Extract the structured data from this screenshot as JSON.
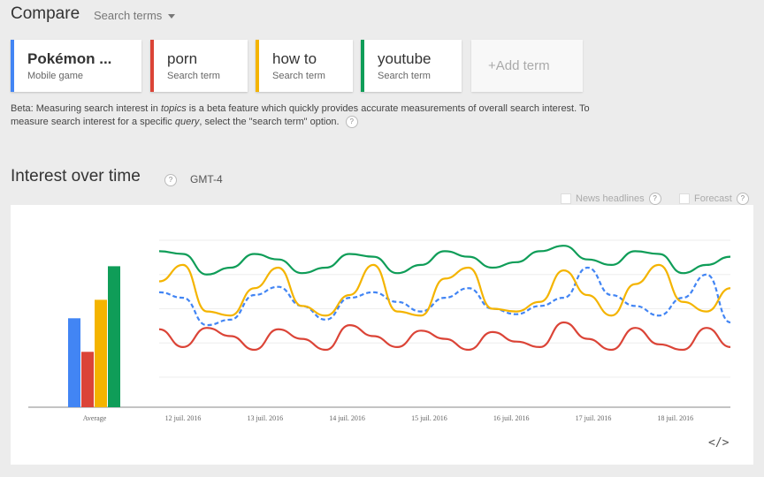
{
  "header": {
    "compare_label": "Compare",
    "search_terms_label": "Search terms"
  },
  "terms": [
    {
      "label": "Pokémon ...",
      "sub": "Mobile game",
      "color": "#4285f4"
    },
    {
      "label": "porn",
      "sub": "Search term",
      "color": "#db4437"
    },
    {
      "label": "how to",
      "sub": "Search term",
      "color": "#f4b400"
    },
    {
      "label": "youtube",
      "sub": "Search term",
      "color": "#0f9d58"
    }
  ],
  "add_term_label": "+Add term",
  "beta_note": {
    "part1": "Beta: Measuring search interest in ",
    "topics": "topics",
    "part2": " is a beta feature which quickly provides accurate measurements of overall search interest. To measure search interest for a specific ",
    "query": "query",
    "part3": ", select the \"search term\" option."
  },
  "help_glyph": "?",
  "section": {
    "title": "Interest over time",
    "timezone": "GMT-4",
    "news_headlines": "News headlines",
    "forecast": "Forecast"
  },
  "embed_glyph": "</>",
  "chart_data": {
    "type": "line",
    "average_label": "Average",
    "averages": [
      {
        "name": "Pokémon ...",
        "value": 53,
        "color": "#4285f4"
      },
      {
        "name": "porn",
        "value": 33,
        "color": "#db4437"
      },
      {
        "name": "how to",
        "value": 64,
        "color": "#f4b400"
      },
      {
        "name": "youtube",
        "value": 84,
        "color": "#0f9d58"
      }
    ],
    "x_tick_labels": [
      "12 juil. 2016",
      "13 juil. 2016",
      "14 juil. 2016",
      "15 juil. 2016",
      "16 juil. 2016",
      "17 juil. 2016",
      "18 juil. 2016"
    ],
    "x": [
      0,
      0.3,
      0.6,
      0.9,
      1.2,
      1.5,
      1.8,
      2.1,
      2.4,
      2.7,
      3.0,
      3.3,
      3.6,
      3.9,
      4.2,
      4.5,
      4.8,
      5.1,
      5.4,
      5.7,
      6.0,
      6.3,
      6.6,
      6.9,
      7.2
    ],
    "ylim": [
      0,
      100
    ],
    "series": [
      {
        "name": "Pokémon ...",
        "color": "#4285f4",
        "dashed": true,
        "values": [
          62,
          58,
          38,
          42,
          60,
          66,
          52,
          42,
          58,
          62,
          55,
          48,
          58,
          65,
          50,
          46,
          52,
          58,
          80,
          60,
          52,
          45,
          58,
          75,
          40
        ]
      },
      {
        "name": "porn",
        "color": "#db4437",
        "dashed": false,
        "values": [
          35,
          22,
          36,
          30,
          20,
          35,
          28,
          20,
          38,
          30,
          22,
          34,
          28,
          20,
          33,
          26,
          22,
          40,
          28,
          20,
          36,
          24,
          20,
          36,
          22
        ]
      },
      {
        "name": "how to",
        "color": "#f4b400",
        "dashed": false,
        "values": [
          70,
          82,
          48,
          45,
          65,
          80,
          52,
          45,
          60,
          82,
          48,
          45,
          72,
          80,
          50,
          48,
          55,
          78,
          60,
          45,
          68,
          82,
          55,
          48,
          65
        ]
      },
      {
        "name": "youtube",
        "color": "#0f9d58",
        "dashed": false,
        "values": [
          92,
          90,
          75,
          80,
          90,
          86,
          76,
          80,
          90,
          88,
          76,
          82,
          92,
          88,
          80,
          84,
          92,
          96,
          86,
          82,
          92,
          90,
          76,
          82,
          88
        ]
      }
    ]
  }
}
